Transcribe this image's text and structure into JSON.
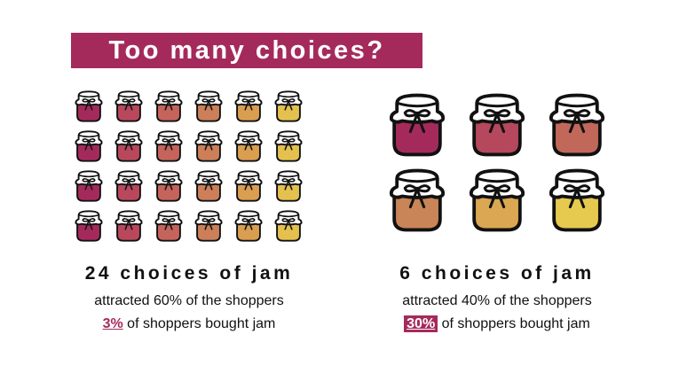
{
  "title": "Too many choices?",
  "colors": {
    "accent": "#a52a5c",
    "text": "#111111"
  },
  "left": {
    "heading": "24 choices of jam",
    "attracted": "attracted 60% of the shoppers",
    "bought_pct": "3%",
    "bought_rest": " of shoppers bought jam",
    "jar_count": 24,
    "jar_colors": [
      "#a52a5c",
      "#b9485c",
      "#c4645a",
      "#cc7f58",
      "#d99e50",
      "#e4c04e"
    ]
  },
  "right": {
    "heading": "6 choices of jam",
    "attracted": "attracted 40% of the shoppers",
    "bought_pct": "30%",
    "bought_rest": " of shoppers bought jam",
    "jar_count": 6,
    "jar_colors": [
      "#a52a5c",
      "#b5485c",
      "#c2685a",
      "#c98457",
      "#dba752",
      "#e6c94f"
    ]
  },
  "icons": {
    "jar": "jam-jar-icon"
  }
}
